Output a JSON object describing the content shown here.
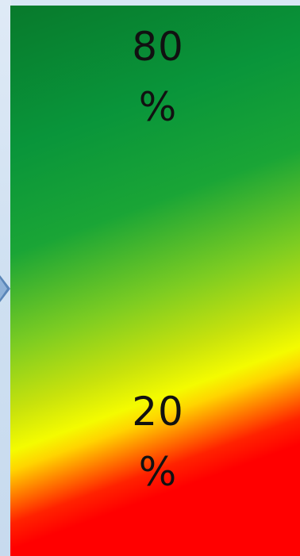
{
  "indicator": {
    "upper_value": "80",
    "upper_unit": "%",
    "lower_value": "20",
    "lower_unit": "%"
  },
  "colors": {
    "dark_green": "#087a2c",
    "green": "#09953a",
    "yellow": "#f4fb00",
    "red": "#ff0000",
    "arrow_blue": "#5a86b8"
  },
  "icons": {
    "left_pointer": "arrow-right-icon"
  }
}
